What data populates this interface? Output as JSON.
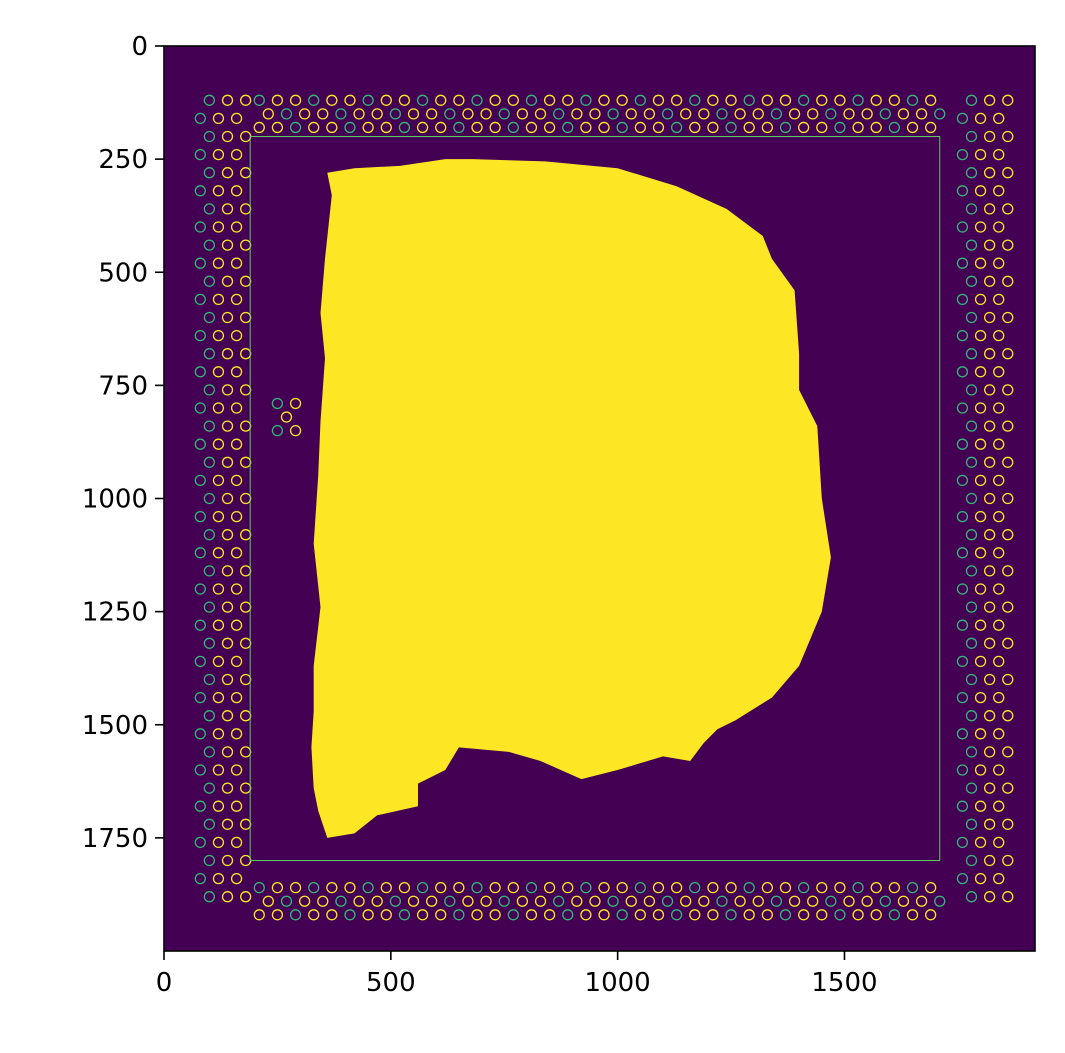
{
  "chart_data": {
    "type": "heatmap",
    "title": "",
    "xlabel": "",
    "ylabel": "",
    "colormap": "viridis",
    "colors": {
      "background": "#440154",
      "tissue": "#fde725",
      "ring": "#fde725",
      "ring_alt": "#35b779",
      "frame": "#5ec962"
    },
    "xlim": [
      0,
      1920
    ],
    "ylim": [
      2000,
      0
    ],
    "x_ticks": [
      0,
      500,
      1000,
      1500
    ],
    "y_ticks": [
      0,
      250,
      500,
      750,
      1000,
      1250,
      1500,
      1750
    ],
    "x_tick_labels": [
      "0",
      "500",
      "1000",
      "1500"
    ],
    "y_tick_labels": [
      "0",
      "250",
      "500",
      "750",
      "1000",
      "1250",
      "1500",
      "1750"
    ],
    "grid": false,
    "legend": "none",
    "inner_frame": {
      "x": [
        190,
        1710
      ],
      "y": [
        200,
        1800
      ]
    },
    "tissue_outline": [
      [
        420,
        270
      ],
      [
        520,
        265
      ],
      [
        620,
        250
      ],
      [
        680,
        250
      ],
      [
        840,
        255
      ],
      [
        1000,
        270
      ],
      [
        1130,
        310
      ],
      [
        1240,
        360
      ],
      [
        1320,
        420
      ],
      [
        1340,
        470
      ],
      [
        1390,
        540
      ],
      [
        1400,
        680
      ],
      [
        1400,
        760
      ],
      [
        1440,
        840
      ],
      [
        1450,
        1000
      ],
      [
        1470,
        1130
      ],
      [
        1450,
        1250
      ],
      [
        1400,
        1370
      ],
      [
        1340,
        1440
      ],
      [
        1260,
        1490
      ],
      [
        1220,
        1510
      ],
      [
        1190,
        1540
      ],
      [
        1160,
        1580
      ],
      [
        1100,
        1570
      ],
      [
        1000,
        1600
      ],
      [
        920,
        1620
      ],
      [
        830,
        1580
      ],
      [
        760,
        1560
      ],
      [
        650,
        1550
      ],
      [
        620,
        1600
      ],
      [
        560,
        1630
      ],
      [
        560,
        1680
      ],
      [
        470,
        1700
      ],
      [
        420,
        1740
      ],
      [
        360,
        1750
      ],
      [
        340,
        1690
      ],
      [
        330,
        1640
      ],
      [
        325,
        1550
      ],
      [
        330,
        1470
      ],
      [
        330,
        1370
      ],
      [
        345,
        1240
      ],
      [
        330,
        1100
      ],
      [
        340,
        950
      ],
      [
        345,
        830
      ],
      [
        355,
        690
      ],
      [
        345,
        590
      ],
      [
        355,
        470
      ],
      [
        370,
        330
      ],
      [
        360,
        280
      ]
    ]
  }
}
